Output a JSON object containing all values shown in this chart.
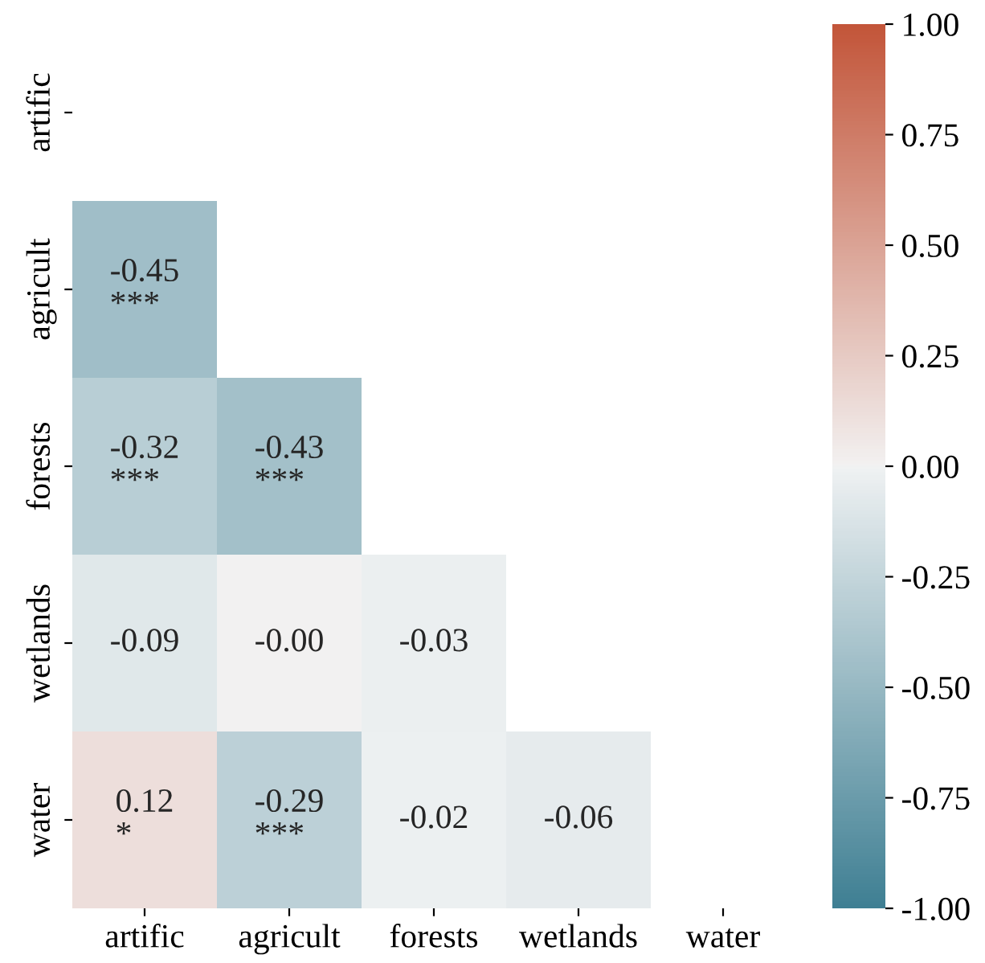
{
  "chart_data": {
    "type": "heatmap",
    "categories": [
      "artific",
      "agricult",
      "forests",
      "wetlands",
      "water"
    ],
    "y_categories": [
      "artific",
      "agricult",
      "forests",
      "wetlands",
      "water"
    ],
    "cells": [
      [
        null,
        null,
        null,
        null,
        null
      ],
      [
        -0.45,
        null,
        null,
        null,
        null
      ],
      [
        -0.32,
        -0.43,
        null,
        null,
        null
      ],
      [
        -0.09,
        -0.0,
        -0.03,
        null,
        null
      ],
      [
        0.12,
        -0.29,
        -0.02,
        -0.06,
        null
      ]
    ],
    "cell_labels": [
      [
        null,
        null,
        null,
        null,
        null
      ],
      [
        "-0.45\n***",
        null,
        null,
        null,
        null
      ],
      [
        "-0.32\n***",
        "-0.43\n***",
        null,
        null,
        null
      ],
      [
        "-0.09",
        "-0.00",
        "-0.03",
        null,
        null
      ],
      [
        "0.12\n*",
        "-0.29\n***",
        "-0.02",
        "-0.06",
        null
      ]
    ],
    "clim": [
      -1,
      1
    ],
    "cticks": [
      {
        "value": -1,
        "label": "-1.00"
      },
      {
        "value": -0.75,
        "label": "-0.75"
      },
      {
        "value": -0.5,
        "label": "-0.50"
      },
      {
        "value": -0.25,
        "label": "-0.25"
      },
      {
        "value": 0,
        "label": "0.00"
      },
      {
        "value": 0.25,
        "label": "0.25"
      },
      {
        "value": 0.5,
        "label": "0.50"
      },
      {
        "value": 0.75,
        "label": "0.75"
      },
      {
        "value": 1,
        "label": "1.00"
      }
    ]
  }
}
